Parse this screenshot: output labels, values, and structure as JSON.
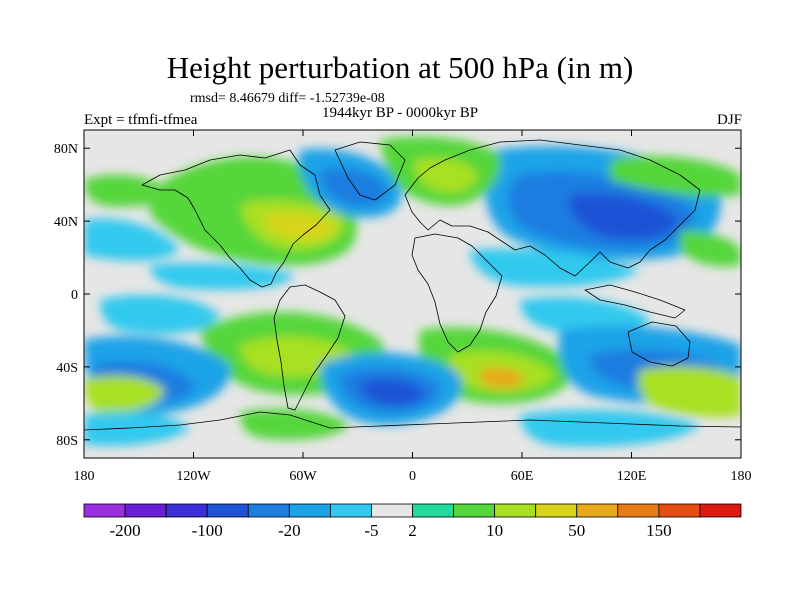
{
  "header": {
    "title": "Height perturbation at 500 hPa (in m)",
    "stats": "rmsd= 8.46679 diff= -1.52739e-08",
    "experiment": "Expt = tfmfi-tfmea",
    "period": "1944kyr BP - 0000kyr BP",
    "season": "DJF"
  },
  "map": {
    "projection": "cylindrical-equidistant",
    "lon_range": [
      -180,
      180
    ],
    "lat_range": [
      -90,
      90
    ],
    "background_color": "#e6e6e6",
    "coastline_color": "#000000",
    "y_tick_values": [
      80,
      40,
      0,
      -40,
      -80
    ],
    "y_tick_labels": [
      "80N",
      "40N",
      "0",
      "40S",
      "80S"
    ],
    "x_tick_values": [
      -180,
      -120,
      -60,
      0,
      60,
      120,
      180
    ],
    "x_tick_labels": [
      "180",
      "120W",
      "60W",
      "0",
      "60E",
      "120E",
      "180"
    ]
  },
  "colorbar": {
    "colors": [
      "#9b2ee0",
      "#6a1fd6",
      "#3b2fd9",
      "#1f53d6",
      "#1e7de0",
      "#1aa3e8",
      "#33c9ee",
      "#e6e6e6",
      "#22db9a",
      "#55d63a",
      "#a8e022",
      "#d8d41b",
      "#e8a91a",
      "#e87b16",
      "#e64d12",
      "#dd1a10"
    ],
    "labels": [
      "-200",
      "-100",
      "-20",
      "-5",
      "2",
      "10",
      "50",
      "150"
    ],
    "label_edges": [
      1,
      3,
      5,
      7,
      8,
      10,
      12,
      14
    ]
  }
}
